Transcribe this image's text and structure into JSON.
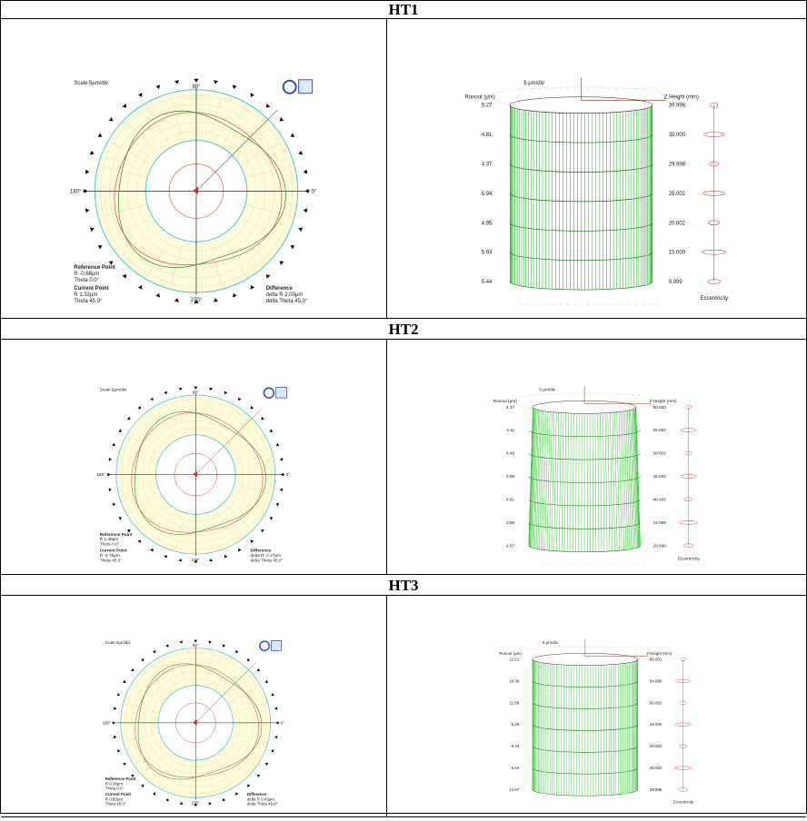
{
  "sections": [
    {
      "title": "HT1",
      "polar": {
        "scale": "Scale 5µm/div",
        "angle_top": "90°",
        "angle_right": "0°",
        "angle_bottom": "270°",
        "angle_left": "180°",
        "reference_title": "Reference Point",
        "reference_r": "R -0.68µm",
        "reference_theta": "Theta 0.0°",
        "current_title": "Current Point",
        "current_r": "R 1.32µm",
        "current_theta": "Theta 45.0°",
        "difference_title": "Difference",
        "difference_r": "delta R 2.00µm",
        "difference_theta": "delta Theta 45.0°"
      },
      "cylinder": {
        "scale": "5 µm/div",
        "runout_title": "Runout (µm)",
        "runout": [
          "5.27",
          "4.81",
          "4.37",
          "5.94",
          "4.95",
          "5.93",
          "5.44"
        ],
        "height_title": "Z Height (mm)",
        "heights": [
          "39.998",
          "35.000",
          "29.998",
          "25.002",
          "20.002",
          "15.000",
          "9.999"
        ],
        "eccentricity": "Eccentricity"
      }
    },
    {
      "title": "HT2",
      "polar": {
        "scale": "Scale 5µm/div",
        "angle_top": "90°",
        "angle_right": "0°",
        "angle_bottom": "270°",
        "angle_left": "180°",
        "reference_title": "Reference Point",
        "reference_r": "R 1.48µm",
        "reference_theta": "Theta 0.0°",
        "current_title": "Current Point",
        "current_r": "R -0.78µm",
        "current_theta": "Theta 45.0°",
        "difference_title": "Difference",
        "difference_r": "delta R -2.27µm",
        "difference_theta": "delta Theta 45.0°"
      },
      "cylinder": {
        "scale": "5 µm/div",
        "runout_title": "Runout (µm)",
        "runout": [
          "4.37",
          "3.11",
          "4.48",
          "5.88",
          "4.81",
          "3.86",
          "4.57"
        ],
        "height_title": "Z Height (mm)",
        "heights": [
          "60.000",
          "55.002",
          "50.002",
          "45.002",
          "40.005",
          "34.999",
          "29.998"
        ],
        "eccentricity": "Eccentricity"
      }
    },
    {
      "title": "HT3",
      "polar": {
        "scale": "Scale 5µm/div",
        "angle_top": "90°",
        "angle_right": "0°",
        "angle_bottom": "270°",
        "angle_left": "180°",
        "reference_title": "Reference Point",
        "reference_r": "R 0.39µm",
        "reference_theta": "Theta 0.0°",
        "current_title": "Current Point",
        "current_r": "R 0.82µm",
        "current_theta": "Theta 45.0°",
        "difference_title": "Difference",
        "difference_r": "delta R 0.43µm",
        "difference_theta": "delta Theta 45.0°"
      },
      "cylinder": {
        "scale": "5 µm/div",
        "runout_title": "Runout (µm)",
        "runout": [
          "11.51",
          "10.38",
          "11.68",
          "8.28",
          "9.43",
          "9.19",
          "12.67"
        ],
        "height_title": "Z Height (mm)",
        "heights": [
          "60.001",
          "54.999",
          "50.002",
          "45.000",
          "40.002",
          "35.002",
          "29.999"
        ],
        "eccentricity": "Eccentricity"
      }
    }
  ]
}
